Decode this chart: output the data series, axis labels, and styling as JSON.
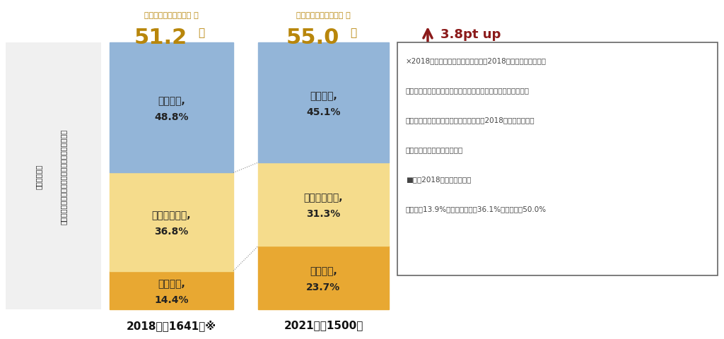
{
  "bar2018": [
    14.4,
    36.8,
    48.8
  ],
  "bar2021": [
    23.7,
    31.3,
    45.1
  ],
  "categories": [
    "全面容認",
    "条件付き容認",
    "全面禁止"
  ],
  "colors": [
    "#E8A832",
    "#F5DC8C",
    "#93B5D8"
  ],
  "label2018": "2018年（1641）※",
  "label2021": "2021年（1500）",
  "total2018": "51.2",
  "total2021": "55.0",
  "total_label": "全面容認・条件付容認 計",
  "up_label": "3.8pt up",
  "note_line1": "×2018年調査結果と比較する上で、2018年時のデータを今回",
  "note_line2": "の調査の業界、企業規模の構成比に合わせて補正するウェイト",
  "note_line3": "バック処理を行い数値の再集計を実施。2018年調査時の数値",
  "note_line4": "は公表済の数値とは異なる。",
  "note_line5": "■以下2018年公表済み数値",
  "note_line6": "全面容認13.9%、条件付き容認36.1%、全面禁止50.0%",
  "side_text": "業界、企業規模の構成比が同一になるよう補正した　数値で、比較",
  "bg_color": "#FFFFFF",
  "gold_color": "#B8860B",
  "dark_red": "#8B1A1A",
  "text_color": "#222222",
  "note_text_color": "#444444"
}
